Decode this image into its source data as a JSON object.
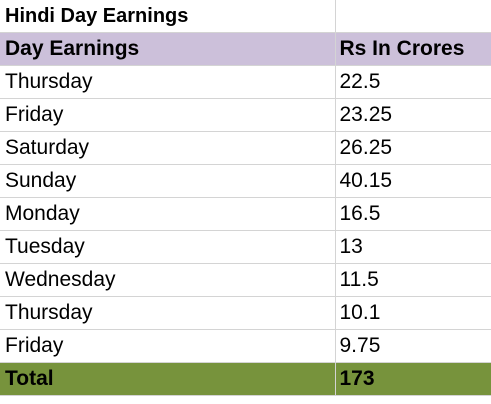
{
  "sheet": {
    "title": "Hindi Day Earnings",
    "headers": {
      "day": "Day Earnings",
      "amount": "Rs In Crores"
    },
    "rows": [
      {
        "day": "Thursday",
        "amount": "22.5"
      },
      {
        "day": "Friday",
        "amount": "23.25"
      },
      {
        "day": "Saturday",
        "amount": "26.25"
      },
      {
        "day": "Sunday",
        "amount": "40.15"
      },
      {
        "day": "Monday",
        "amount": "16.5"
      },
      {
        "day": "Tuesday",
        "amount": "13"
      },
      {
        "day": "Wednesday",
        "amount": "11.5"
      },
      {
        "day": "Thursday",
        "amount": "10.1"
      },
      {
        "day": "Friday",
        "amount": "9.75"
      }
    ],
    "total": {
      "label": "Total",
      "amount": "173"
    },
    "colors": {
      "header_fill": "#ccc0da",
      "total_fill": "#77933c",
      "gridline": "#d4d4d4"
    }
  }
}
